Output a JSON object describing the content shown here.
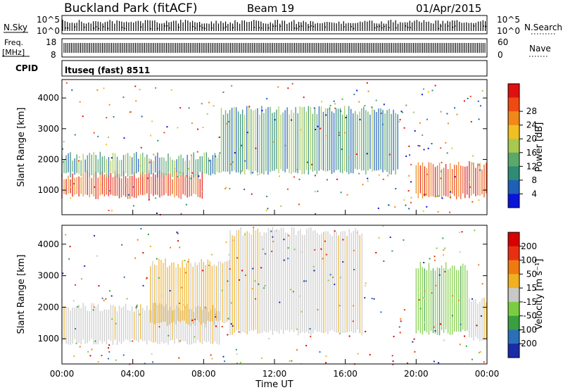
{
  "header": {
    "title": "Buckland Park (fitACF)",
    "beam": "Beam 19",
    "date": "01/Apr/2015"
  },
  "nsky": {
    "label": "N.Sky",
    "tick_top": "10^5",
    "tick_bottom": "10^0",
    "right_label": "N.Search",
    "right_tick_top": "10^5",
    "right_tick_bottom": "10^0"
  },
  "freq": {
    "label_1": "Freq.",
    "label_2": "[MHz]",
    "tick_top": "18",
    "tick_bottom": "8",
    "right_label": "Nave",
    "right_tick_top": "60",
    "right_tick_bottom": "0"
  },
  "cpid": {
    "label": "CPID",
    "value": "ltuseq (fast) 8511"
  },
  "chart_data": [
    {
      "type": "heatmap",
      "panel": "power",
      "ylabel": "Slant Range [km]",
      "ylim": [
        200,
        4600
      ],
      "yticks": [
        "1000",
        "2000",
        "3000",
        "4000"
      ],
      "xlim": [
        "00:00",
        "24:00"
      ],
      "colorbar": {
        "label": "Power [dB]",
        "ticks": [
          "4",
          "8",
          "12",
          "16",
          "20",
          "24",
          "28"
        ],
        "colors": [
          "#0a14d8",
          "#1e5fb8",
          "#2e8c74",
          "#5aa86a",
          "#a8c850",
          "#f0c020",
          "#f08818",
          "#ee4a12",
          "#e01010"
        ]
      },
      "bands": [
        {
          "hour_start": 0,
          "hour_end": 8,
          "range_low": 800,
          "range_high": 1500,
          "level": "high"
        },
        {
          "hour_start": 0,
          "hour_end": 9,
          "range_low": 1500,
          "range_high": 2100,
          "level": "mid"
        },
        {
          "hour_start": 9,
          "hour_end": 19,
          "range_low": 1600,
          "range_high": 3600,
          "level": "mid"
        },
        {
          "hour_start": 20,
          "hour_end": 24,
          "range_low": 800,
          "range_high": 1800,
          "level": "high"
        }
      ]
    },
    {
      "type": "heatmap",
      "panel": "velocity",
      "ylabel": "Slant Range [km]",
      "ylim": [
        200,
        4600
      ],
      "yticks": [
        "1000",
        "2000",
        "3000",
        "4000"
      ],
      "xlabel": "Time UT",
      "xticks": [
        "00:00",
        "04:00",
        "08:00",
        "12:00",
        "16:00",
        "20:00",
        "00:00"
      ],
      "colorbar": {
        "label": "Velocity [m s⁻¹]",
        "ticks": [
          "200",
          "100",
          "50",
          "15",
          "-15",
          "-50",
          "-100",
          "-200"
        ],
        "colors": [
          "#1a2aa8",
          "#2a6fb8",
          "#38a040",
          "#7ccc40",
          "#c8c8c8",
          "#f0b020",
          "#f07a10",
          "#e83010",
          "#d80000"
        ]
      },
      "bands": [
        {
          "hour_start": 0,
          "hour_end": 9,
          "range_low": 900,
          "range_high": 2000,
          "level": "grey"
        },
        {
          "hour_start": 5,
          "hour_end": 9.5,
          "range_low": 1500,
          "range_high": 3400,
          "level": "orange"
        },
        {
          "hour_start": 9.5,
          "hour_end": 17,
          "range_low": 1200,
          "range_high": 4400,
          "level": "grey"
        },
        {
          "hour_start": 20,
          "hour_end": 23,
          "range_low": 1200,
          "range_high": 3300,
          "level": "green"
        },
        {
          "hour_start": 23,
          "hour_end": 24,
          "range_low": 1000,
          "range_high": 2200,
          "level": "grey"
        }
      ]
    }
  ]
}
